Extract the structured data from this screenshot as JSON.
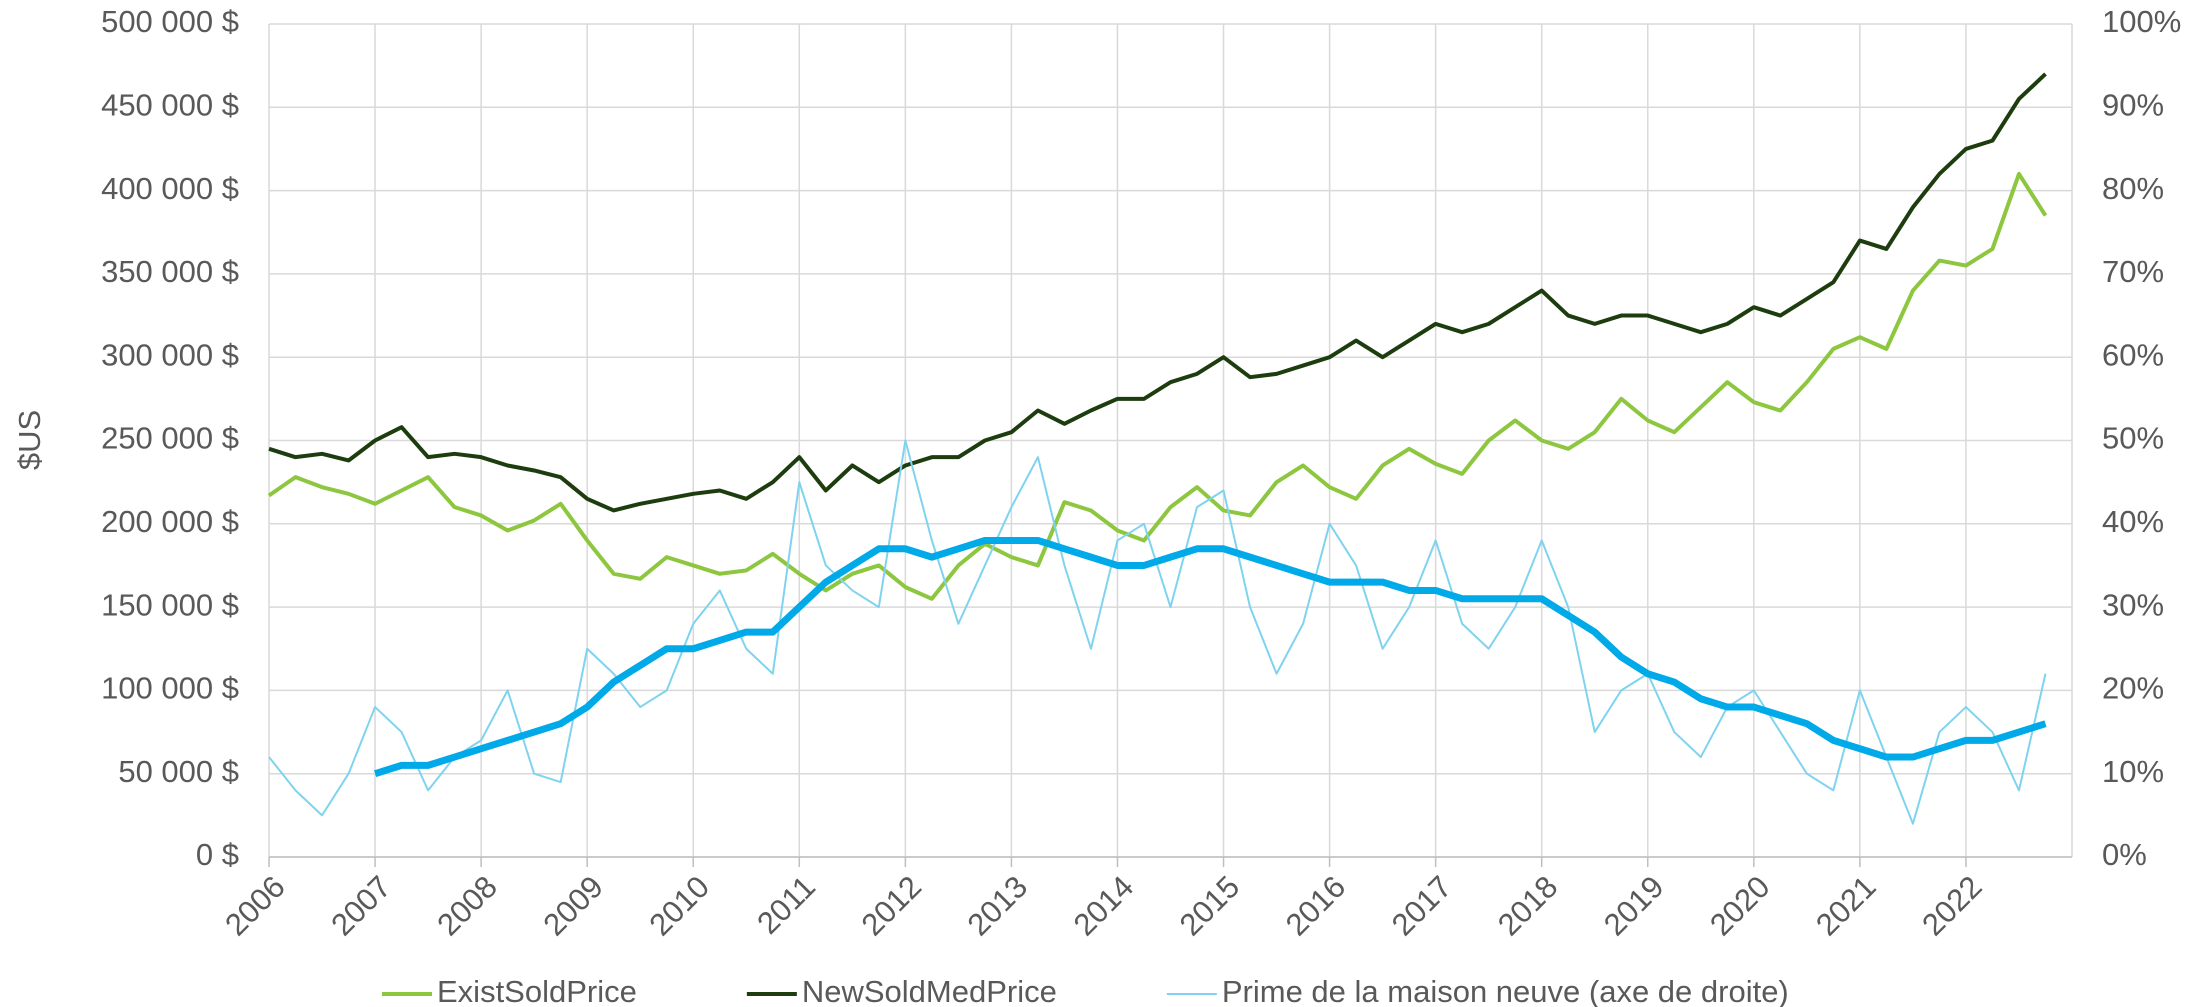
{
  "chart_data": {
    "type": "line",
    "y_label": "$US",
    "x": [
      2006,
      2006.25,
      2006.5,
      2006.75,
      2007,
      2007.25,
      2007.5,
      2007.75,
      2008,
      2008.25,
      2008.5,
      2008.75,
      2009,
      2009.25,
      2009.5,
      2009.75,
      2010,
      2010.25,
      2010.5,
      2010.75,
      2011,
      2011.25,
      2011.5,
      2011.75,
      2012,
      2012.25,
      2012.5,
      2012.75,
      2013,
      2013.25,
      2013.5,
      2013.75,
      2014,
      2014.25,
      2014.5,
      2014.75,
      2015,
      2015.25,
      2015.5,
      2015.75,
      2016,
      2016.25,
      2016.5,
      2016.75,
      2017,
      2017.25,
      2017.5,
      2017.75,
      2018,
      2018.25,
      2018.5,
      2018.75,
      2019,
      2019.25,
      2019.5,
      2019.75,
      2020,
      2020.25,
      2020.5,
      2020.75,
      2021,
      2021.25,
      2021.5,
      2021.75,
      2022,
      2022.25,
      2022.5,
      2022.75
    ],
    "series": [
      {
        "name": "ExistSoldPrice",
        "color": "#8dc63f",
        "width": 4,
        "axis": "y",
        "values": [
          217000,
          228000,
          222000,
          218000,
          212000,
          220000,
          228000,
          210000,
          205000,
          196000,
          202000,
          212000,
          190000,
          170000,
          167000,
          180000,
          175000,
          170000,
          172000,
          182000,
          170000,
          160000,
          170000,
          175000,
          162000,
          155000,
          175000,
          188000,
          180000,
          175000,
          213000,
          208000,
          196000,
          190000,
          210000,
          222000,
          208000,
          205000,
          225000,
          235000,
          222000,
          215000,
          235000,
          245000,
          236000,
          230000,
          250000,
          262000,
          250000,
          245000,
          255000,
          275000,
          262000,
          255000,
          270000,
          285000,
          273000,
          268000,
          285000,
          305000,
          312000,
          305000,
          340000,
          358000,
          355000,
          365000,
          410000,
          385000
        ]
      },
      {
        "name": "NewSoldMedPrice",
        "color": "#1e3d0f",
        "width": 4,
        "axis": "y",
        "values": [
          245000,
          240000,
          242000,
          238000,
          250000,
          258000,
          240000,
          242000,
          240000,
          235000,
          232000,
          228000,
          215000,
          208000,
          212000,
          215000,
          218000,
          220000,
          215000,
          225000,
          240000,
          220000,
          235000,
          225000,
          235000,
          240000,
          240000,
          250000,
          255000,
          268000,
          260000,
          268000,
          275000,
          275000,
          285000,
          290000,
          300000,
          288000,
          290000,
          295000,
          300000,
          310000,
          300000,
          310000,
          320000,
          315000,
          320000,
          330000,
          340000,
          325000,
          320000,
          325000,
          325000,
          320000,
          315000,
          320000,
          330000,
          325000,
          335000,
          345000,
          370000,
          365000,
          390000,
          410000,
          425000,
          430000,
          455000,
          470000
        ]
      },
      {
        "name": "Prime de la maison neuve (axe de droite)",
        "color": "#7fd3ef",
        "width": 2,
        "axis": "y2",
        "values": [
          12,
          8,
          5,
          10,
          18,
          15,
          8,
          12,
          14,
          20,
          10,
          9,
          25,
          22,
          18,
          20,
          28,
          32,
          25,
          22,
          45,
          35,
          32,
          30,
          50,
          38,
          28,
          35,
          42,
          48,
          35,
          25,
          38,
          40,
          30,
          42,
          44,
          30,
          22,
          28,
          40,
          35,
          25,
          30,
          38,
          28,
          25,
          30,
          38,
          30,
          15,
          20,
          22,
          15,
          12,
          18,
          20,
          15,
          10,
          8,
          20,
          12,
          4,
          15,
          18,
          15,
          8,
          22
        ]
      },
      {
        "color": "#00a9e8",
        "width": 7,
        "axis": "y2",
        "values": [
          null,
          null,
          null,
          null,
          10,
          11,
          11,
          12,
          13,
          14,
          15,
          16,
          18,
          21,
          23,
          25,
          25,
          26,
          27,
          27,
          30,
          33,
          35,
          37,
          37,
          36,
          37,
          38,
          38,
          38,
          37,
          36,
          35,
          35,
          36,
          37,
          37,
          36,
          35,
          34,
          33,
          33,
          33,
          32,
          32,
          31,
          31,
          31,
          31,
          29,
          27,
          24,
          22,
          21,
          19,
          18,
          18,
          17,
          16,
          14,
          13,
          12,
          12,
          13,
          14,
          14,
          15,
          16
        ]
      }
    ],
    "xlim": [
      2006,
      2023
    ],
    "xticks": [
      2006,
      2007,
      2008,
      2009,
      2010,
      2011,
      2012,
      2013,
      2014,
      2015,
      2016,
      2017,
      2018,
      2019,
      2020,
      2021,
      2022
    ],
    "ylim": [
      0,
      500000
    ],
    "yticks": [
      {
        "value": 0,
        "label": "0 $"
      },
      {
        "value": 50000,
        "label": "50 000 $"
      },
      {
        "value": 100000,
        "label": "100 000 $"
      },
      {
        "value": 150000,
        "label": "150 000 $"
      },
      {
        "value": 200000,
        "label": "200 000 $"
      },
      {
        "value": 250000,
        "label": "250 000 $"
      },
      {
        "value": 300000,
        "label": "300 000 $"
      },
      {
        "value": 350000,
        "label": "350 000 $"
      },
      {
        "value": 400000,
        "label": "400 000 $"
      },
      {
        "value": 450000,
        "label": "450 000 $"
      },
      {
        "value": 500000,
        "label": "500 000 $"
      }
    ],
    "y2lim": [
      0,
      100
    ],
    "y2ticks": [
      {
        "value": 0,
        "label": "0%"
      },
      {
        "value": 10,
        "label": "10%"
      },
      {
        "value": 20,
        "label": "20%"
      },
      {
        "value": 30,
        "label": "30%"
      },
      {
        "value": 40,
        "label": "40%"
      },
      {
        "value": 50,
        "label": "50%"
      },
      {
        "value": 60,
        "label": "60%"
      },
      {
        "value": 70,
        "label": "70%"
      },
      {
        "value": 80,
        "label": "80%"
      },
      {
        "value": 90,
        "label": "90%"
      },
      {
        "value": 100,
        "label": "100%"
      }
    ],
    "grid": true,
    "legend": "bottom"
  }
}
